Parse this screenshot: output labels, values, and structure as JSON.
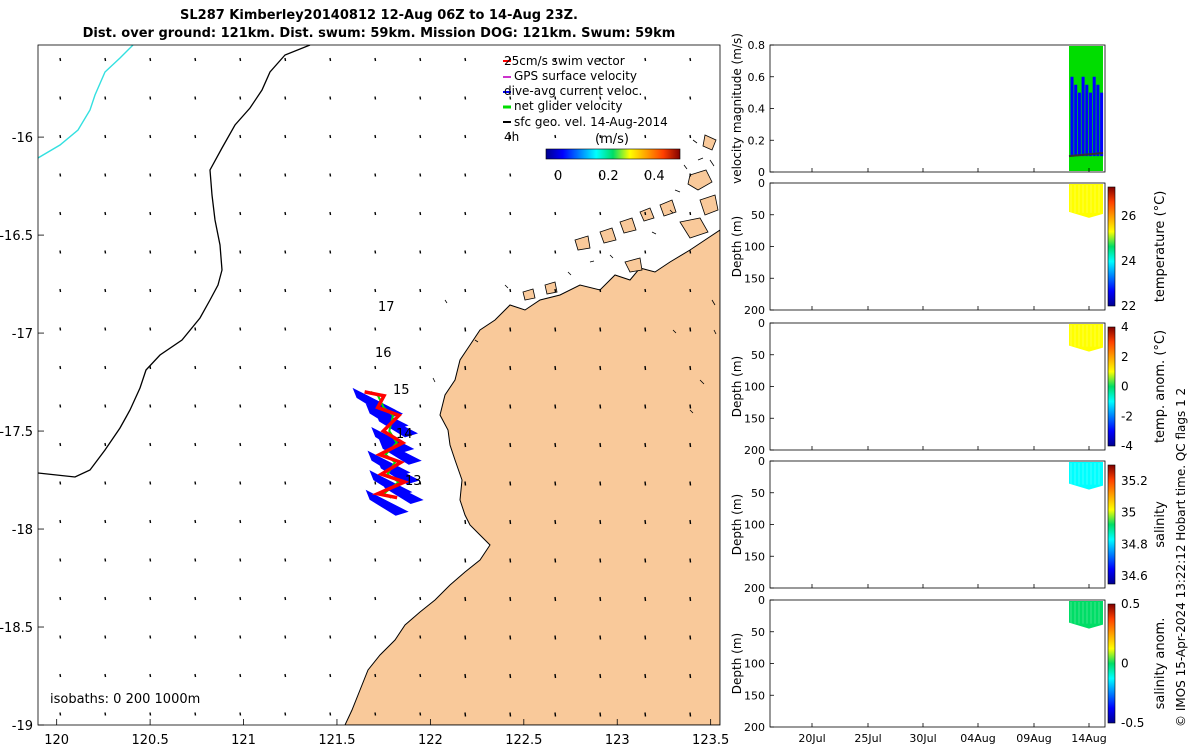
{
  "header": {
    "line1": "SL287 Kimberley20140812 12-Aug 06Z to 14-Aug 23Z.",
    "line2": "Dist. over ground: 121km. Dist. swum: 59km. Mission DOG: 121km. Swum: 59km"
  },
  "footer_vertical": "© IMOS 15-Apr-2024 13:22:12 Hobart time. QC flags 1  2",
  "colors": {
    "land": "#F9C99A",
    "coast": "#000000",
    "isobath": "#33E0E0",
    "swim_vector": "#FF0000",
    "gps_velocity": "#CC33CC",
    "current_veloc": "#0000FF",
    "net_velocity": "#00DD00",
    "geo_vel": "#000000"
  },
  "map": {
    "xticks": [
      "120",
      "120.5",
      "121",
      "121.5",
      "122",
      "122.5",
      "123",
      "123.5"
    ],
    "yticks": [
      "-16",
      "-16.5",
      "-17",
      "-17.5",
      "-18",
      "-18.5",
      "-19"
    ],
    "isobaths_label": "isobaths: 0   200  1000m",
    "legend": [
      {
        "label": "25cm/s swim vector",
        "color": "#FF0000"
      },
      {
        "label": "GPS surface velocity",
        "color": "#CC33CC"
      },
      {
        "label": "dive-avg current veloc.",
        "color": "#0000FF"
      },
      {
        "label": "net glider velocity",
        "color": "#00DD00"
      },
      {
        "label": "sfc geo. vel. 14-Aug-2014",
        "color": "#000000"
      }
    ],
    "legend_extra": "4h",
    "colorbar": {
      "title": "(m/s)",
      "ticks": [
        "0",
        "0.2",
        "0.4"
      ]
    },
    "day_labels": [
      "17",
      "16",
      "15",
      "14",
      "13"
    ]
  },
  "chart_data": [
    {
      "type": "line",
      "title": "Glider track map",
      "xlabel": "",
      "ylabel": "",
      "xlim": [
        119.9,
        123.55
      ],
      "ylim": [
        -19.0,
        -15.53
      ],
      "track_lon": [
        121.68,
        121.72,
        121.75,
        121.8,
        121.78,
        121.82,
        121.76,
        121.81,
        121.77,
        121.83,
        121.75,
        121.79
      ],
      "track_lat": [
        -17.3,
        -17.32,
        -17.38,
        -17.42,
        -17.5,
        -17.56,
        -17.62,
        -17.66,
        -17.72,
        -17.76,
        -17.82,
        -17.84
      ],
      "day_labels": [
        "17",
        "16",
        "15",
        "14",
        "13"
      ]
    },
    {
      "type": "line",
      "title": "",
      "ylabel": "velocity magnitude (m/s)",
      "ylim": [
        0,
        0.8
      ],
      "yticks": [
        "0",
        "0.2",
        "0.4",
        "0.6",
        "0.8"
      ],
      "xticks": [
        "20Jul",
        "25Jul",
        "30Jul",
        "04Aug",
        "09Aug",
        "14Aug"
      ]
    },
    {
      "type": "heatmap",
      "ylabel": "Depth (m)",
      "colorbar_label": "temperature (°C)",
      "yticks": [
        "0",
        "50",
        "100",
        "150",
        "200"
      ],
      "cticks": [
        "22",
        "24",
        "26"
      ],
      "clim": [
        22,
        27.3
      ],
      "data_depth_range": [
        0,
        55
      ],
      "mean_value": 25.3
    },
    {
      "type": "heatmap",
      "ylabel": "Depth (m)",
      "colorbar_label": "temp. anom. (°C)",
      "yticks": [
        "0",
        "50",
        "100",
        "150",
        "200"
      ],
      "cticks": [
        "-4",
        "-2",
        "0",
        "2",
        "4"
      ],
      "clim": [
        -4,
        4
      ],
      "data_depth_range": [
        0,
        45
      ],
      "mean_value": 1.5
    },
    {
      "type": "heatmap",
      "ylabel": "Depth (m)",
      "colorbar_label": "salinity",
      "yticks": [
        "0",
        "50",
        "100",
        "150",
        "200"
      ],
      "cticks": [
        "34.6",
        "34.8",
        "35",
        "35.2"
      ],
      "clim": [
        34.55,
        35.3
      ],
      "data_depth_range": [
        0,
        45
      ],
      "mean_value": 34.82
    },
    {
      "type": "heatmap",
      "ylabel": "Depth (m)",
      "colorbar_label": "salinity anom.",
      "yticks": [
        "0",
        "50",
        "100",
        "150",
        "200"
      ],
      "cticks": [
        "-0.5",
        "0",
        "0.5"
      ],
      "clim": [
        -0.5,
        0.5
      ],
      "data_depth_range": [
        0,
        45
      ],
      "mean_value": 0.0
    }
  ]
}
